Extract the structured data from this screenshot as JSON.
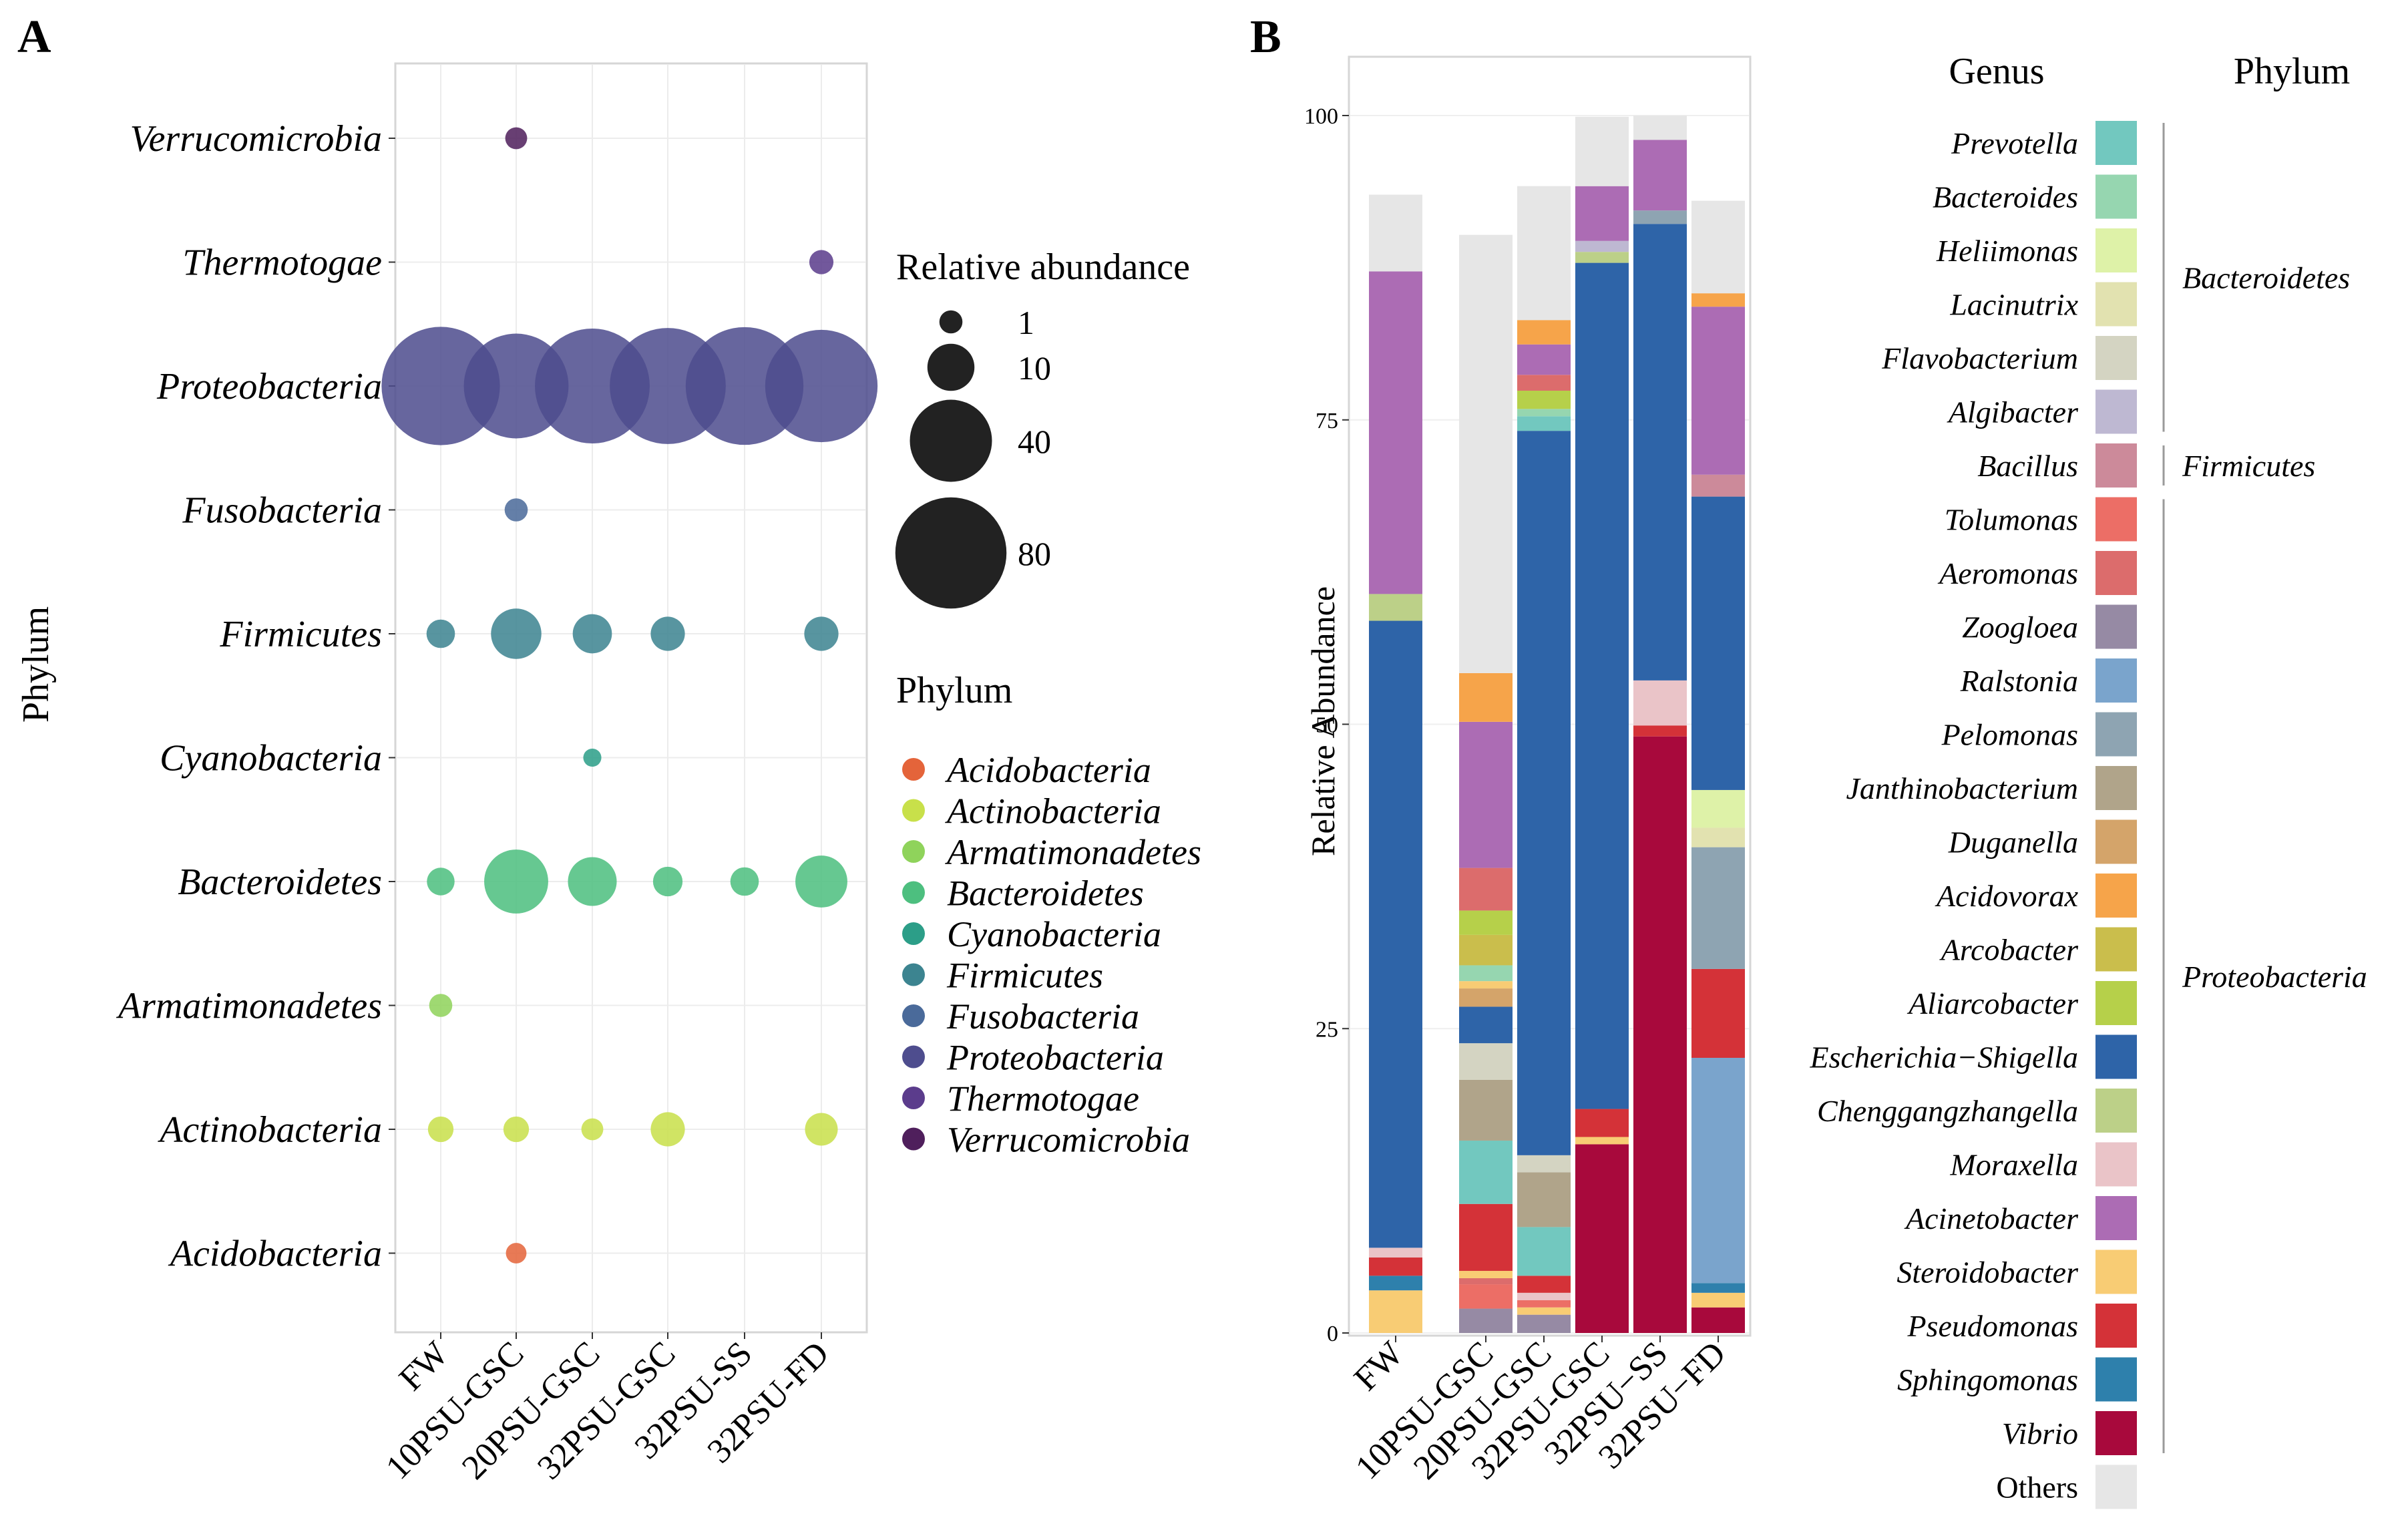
{
  "chart_data": [
    {
      "panel": "A",
      "type": "scatter",
      "subtype": "bubble",
      "xlabel": "",
      "ylabel": "Phylum",
      "samples": [
        "FW",
        "10PSU-GSC",
        "20PSU-GSC",
        "32PSU-GSC",
        "32PSU-SS",
        "32PSU-FD"
      ],
      "phyla": [
        "Acidobacteria",
        "Actinobacteria",
        "Armatimonadetes",
        "Bacteroidetes",
        "Cyanobacteria",
        "Firmicutes",
        "Fusobacteria",
        "Proteobacteria",
        "Thermotogae",
        "Verrucomicrobia"
      ],
      "colors": {
        "Acidobacteria": "#e4643a",
        "Actinobacteria": "#c8e04a",
        "Armatimonadetes": "#8fd35b",
        "Bacteroidetes": "#4dbf7f",
        "Cyanobacteria": "#2c9e88",
        "Firmicutes": "#3c8490",
        "Fusobacteria": "#4a6a9a",
        "Proteobacteria": "#4e4d8e",
        "Thermotogae": "#5b3c8c",
        "Verrucomicrobia": "#4f1f5c"
      },
      "points": [
        {
          "phylum": "Verrucomicrobia",
          "sample": "10PSU-GSC",
          "value": 0.8
        },
        {
          "phylum": "Thermotogae",
          "sample": "32PSU-FD",
          "value": 1.2
        },
        {
          "phylum": "Proteobacteria",
          "sample": "FW",
          "value": 92
        },
        {
          "phylum": "Proteobacteria",
          "sample": "10PSU-GSC",
          "value": 70
        },
        {
          "phylum": "Proteobacteria",
          "sample": "20PSU-GSC",
          "value": 86
        },
        {
          "phylum": "Proteobacteria",
          "sample": "32PSU-GSC",
          "value": 88
        },
        {
          "phylum": "Proteobacteria",
          "sample": "32PSU-SS",
          "value": 91
        },
        {
          "phylum": "Proteobacteria",
          "sample": "32PSU-FD",
          "value": 82
        },
        {
          "phylum": "Fusobacteria",
          "sample": "10PSU-GSC",
          "value": 1
        },
        {
          "phylum": "Firmicutes",
          "sample": "FW",
          "value": 2.2
        },
        {
          "phylum": "Firmicutes",
          "sample": "10PSU-GSC",
          "value": 12
        },
        {
          "phylum": "Firmicutes",
          "sample": "20PSU-GSC",
          "value": 6
        },
        {
          "phylum": "Firmicutes",
          "sample": "32PSU-GSC",
          "value": 4
        },
        {
          "phylum": "Firmicutes",
          "sample": "32PSU-FD",
          "value": 4
        },
        {
          "phylum": "Cyanobacteria",
          "sample": "20PSU-GSC",
          "value": 0.3
        },
        {
          "phylum": "Bacteroidetes",
          "sample": "FW",
          "value": 2
        },
        {
          "phylum": "Bacteroidetes",
          "sample": "10PSU-GSC",
          "value": 22
        },
        {
          "phylum": "Bacteroidetes",
          "sample": "20PSU-GSC",
          "value": 11
        },
        {
          "phylum": "Bacteroidetes",
          "sample": "32PSU-GSC",
          "value": 2.5
        },
        {
          "phylum": "Bacteroidetes",
          "sample": "32PSU-SS",
          "value": 2.2
        },
        {
          "phylum": "Bacteroidetes",
          "sample": "32PSU-FD",
          "value": 13
        },
        {
          "phylum": "Armatimonadetes",
          "sample": "FW",
          "value": 1
        },
        {
          "phylum": "Actinobacteria",
          "sample": "FW",
          "value": 1.5
        },
        {
          "phylum": "Actinobacteria",
          "sample": "10PSU-GSC",
          "value": 1.5
        },
        {
          "phylum": "Actinobacteria",
          "sample": "20PSU-GSC",
          "value": 0.8
        },
        {
          "phylum": "Actinobacteria",
          "sample": "32PSU-GSC",
          "value": 4
        },
        {
          "phylum": "Actinobacteria",
          "sample": "32PSU-FD",
          "value": 3.5
        },
        {
          "phylum": "Acidobacteria",
          "sample": "10PSU-GSC",
          "value": 0.6
        }
      ],
      "size_legend": {
        "title": "Relative abundance",
        "values": [
          1,
          10,
          40,
          80
        ]
      },
      "color_legend_title": "Phylum"
    },
    {
      "panel": "B",
      "type": "bar",
      "subtype": "stacked",
      "ylabel": "Relative Abundance",
      "ylim": [
        0,
        100
      ],
      "yticks": [
        0,
        25,
        50,
        75,
        100
      ],
      "categories": [
        "FW",
        "10PSU-GSC",
        "20PSU-GSC",
        "32PSU-GSC",
        "32PSU−SS",
        "32PSU−FD"
      ],
      "genus_legend_title": "Genus",
      "phylum_legend_title": "Phylum",
      "genera": [
        {
          "name": "Prevotella",
          "color": "#72c8bf"
        },
        {
          "name": "Bacteroides",
          "color": "#96d6b0"
        },
        {
          "name": "Heliimonas",
          "color": "#def2a8"
        },
        {
          "name": "Lacinutrix",
          "color": "#e2e2b0"
        },
        {
          "name": "Flavobacterium",
          "color": "#d4d4c2"
        },
        {
          "name": "Algibacter",
          "color": "#beb8d2"
        },
        {
          "name": "Bacillus",
          "color": "#cc8a9a"
        },
        {
          "name": "Tolumonas",
          "color": "#ec6e66"
        },
        {
          "name": "Aeromonas",
          "color": "#dc6c6c"
        },
        {
          "name": "Zoogloea",
          "color": "#968aa4"
        },
        {
          "name": "Ralstonia",
          "color": "#7aa4cc"
        },
        {
          "name": "Pelomonas",
          "color": "#8ea4b2"
        },
        {
          "name": "Janthinobacterium",
          "color": "#b0a48a"
        },
        {
          "name": "Duganella",
          "color": "#d4a46a"
        },
        {
          "name": "Acidovorax",
          "color": "#f6a44a"
        },
        {
          "name": "Arcobacter",
          "color": "#cabe4c"
        },
        {
          "name": "Aliarcobacter",
          "color": "#b6d04a"
        },
        {
          "name": "Escherichia−Shigella",
          "color": "#2e64a8"
        },
        {
          "name": "Chenggangzhangella",
          "color": "#bcd088"
        },
        {
          "name": "Moraxella",
          "color": "#eac4c8"
        },
        {
          "name": "Acinetobacter",
          "color": "#ac6cb4"
        },
        {
          "name": "Steroidobacter",
          "color": "#f8cc74"
        },
        {
          "name": "Pseudomonas",
          "color": "#d43238"
        },
        {
          "name": "Sphingomonas",
          "color": "#2e80ac"
        },
        {
          "name": "Vibrio",
          "color": "#a8093c"
        },
        {
          "name": "Others",
          "color": "#e6e6e6"
        }
      ],
      "phylum_groups": [
        {
          "name": "Bacteroidetes",
          "from": "Prevotella",
          "to": "Algibacter"
        },
        {
          "name": "Firmicutes",
          "from": "Bacillus",
          "to": "Bacillus"
        },
        {
          "name": "Proteobacteria",
          "from": "Tolumonas",
          "to": "Vibrio"
        }
      ],
      "stacks": [
        {
          "sample": "FW",
          "segments": [
            [
              "Steroidobacter",
              3.5
            ],
            [
              "Sphingomonas",
              1.2
            ],
            [
              "Pseudomonas",
              1.5
            ],
            [
              "Moraxella",
              0.8
            ],
            [
              "Escherichia−Shigella",
              51.5
            ],
            [
              "Chenggangzhangella",
              2.2
            ],
            [
              "Acinetobacter",
              26.5
            ],
            [
              "Others",
              6.3
            ]
          ]
        },
        {
          "sample": "10PSU-GSC",
          "segments": [
            [
              "Zoogloea",
              2
            ],
            [
              "Tolumonas",
              2
            ],
            [
              "Aeromonas",
              0.5
            ],
            [
              "Steroidobacter",
              0.6
            ],
            [
              "Pseudomonas",
              5.5
            ],
            [
              "Prevotella",
              5.2
            ],
            [
              "Janthinobacterium",
              5
            ],
            [
              "Flavobacterium",
              3
            ],
            [
              "Escherichia−Shigella",
              3
            ],
            [
              "Duganella",
              1.5
            ],
            [
              "Steroidobacter",
              0.6
            ],
            [
              "Bacteroides",
              1.3
            ],
            [
              "Arcobacter",
              2.5
            ],
            [
              "Aliarcobacter",
              2
            ],
            [
              "Aeromonas",
              3.5
            ],
            [
              "Acinetobacter",
              12
            ],
            [
              "Acidovorax",
              4
            ],
            [
              "Others",
              36
            ]
          ]
        },
        {
          "sample": "20PSU-GSC",
          "segments": [
            [
              "Zoogloea",
              1.5
            ],
            [
              "Steroidobacter",
              0.6
            ],
            [
              "Tolumonas",
              0.6
            ],
            [
              "Moraxella",
              0.6
            ],
            [
              "Pseudomonas",
              1.4
            ],
            [
              "Prevotella",
              4
            ],
            [
              "Janthinobacterium",
              4.5
            ],
            [
              "Flavobacterium",
              1.4
            ],
            [
              "Escherichia−Shigella",
              59.5
            ],
            [
              "Prevotella",
              1.2
            ],
            [
              "Bacteroides",
              0.6
            ],
            [
              "Aliarcobacter",
              1.5
            ],
            [
              "Aeromonas",
              1.3
            ],
            [
              "Acinetobacter",
              2.5
            ],
            [
              "Acidovorax",
              2
            ],
            [
              "Others",
              11
            ]
          ]
        },
        {
          "sample": "32PSU-GSC",
          "segments": [
            [
              "Vibrio",
              15.5
            ],
            [
              "Steroidobacter",
              0.6
            ],
            [
              "Pseudomonas",
              2.3
            ],
            [
              "Escherichia−Shigella",
              69.5
            ],
            [
              "Chenggangzhangella",
              0.9
            ],
            [
              "Algibacter",
              0.9
            ],
            [
              "Acinetobacter",
              4.5
            ],
            [
              "Others",
              5.7
            ]
          ]
        },
        {
          "sample": "32PSU−SS",
          "segments": [
            [
              "Vibrio",
              49
            ],
            [
              "Pseudomonas",
              0.9
            ],
            [
              "Moraxella",
              3.7
            ],
            [
              "Escherichia−Shigella",
              37.5
            ],
            [
              "Pelomonas",
              1.1
            ],
            [
              "Acinetobacter",
              5.8
            ],
            [
              "Others",
              2
            ]
          ]
        },
        {
          "sample": "32PSU−FD",
          "segments": [
            [
              "Vibrio",
              2.1
            ],
            [
              "Steroidobacter",
              1.2
            ],
            [
              "Sphingomonas",
              0.8
            ],
            [
              "Ralstonia",
              18.5
            ],
            [
              "Pseudomonas",
              7.3
            ],
            [
              "Pelomonas",
              10
            ],
            [
              "Lacinutrix",
              1.6
            ],
            [
              "Heliimonas",
              3.1
            ],
            [
              "Escherichia−Shigella",
              24.1
            ],
            [
              "Bacillus",
              1.8
            ],
            [
              "Acinetobacter",
              13.8
            ],
            [
              "Acidovorax",
              1.1
            ],
            [
              "Others",
              7.6
            ]
          ]
        }
      ]
    }
  ],
  "panels": {
    "a_letter": "A",
    "b_letter": "B"
  }
}
